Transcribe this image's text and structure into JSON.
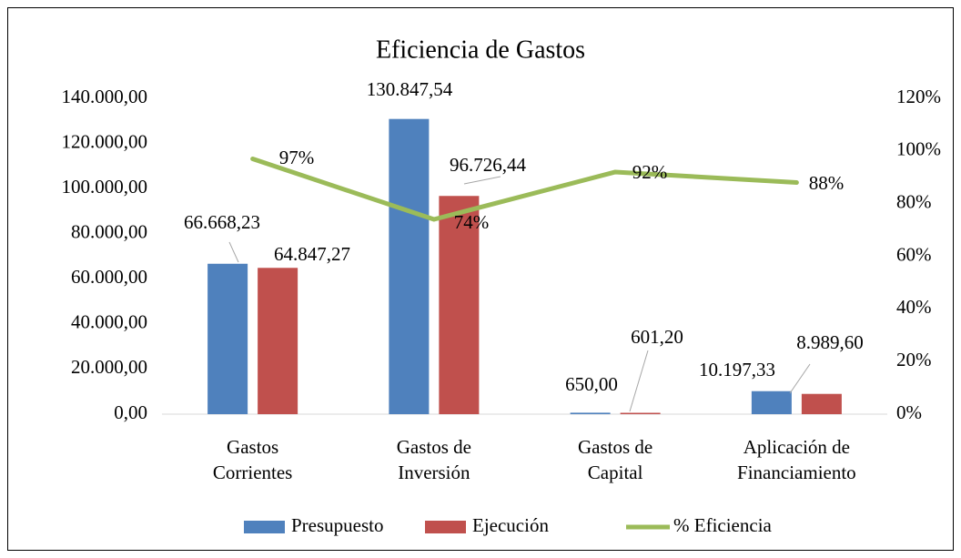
{
  "chart_data": {
    "type": "bar-line",
    "title": "Eficiencia de Gastos",
    "categories": [
      [
        "Gastos",
        "Corrientes"
      ],
      [
        "Gastos de",
        "Inversión"
      ],
      [
        "Gastos de",
        "Capital"
      ],
      [
        "Aplicación de",
        "Financiamiento"
      ]
    ],
    "series": [
      {
        "name": "Presupuesto",
        "type": "bar",
        "color": "#4f81bd",
        "values": [
          66668.23,
          130847.54,
          650,
          10197.33
        ],
        "value_labels": [
          "66.668,23",
          "130.847,54",
          "650,00",
          "10.197,33"
        ]
      },
      {
        "name": "Ejecución",
        "type": "bar",
        "color": "#c0504d",
        "values": [
          64847.27,
          96726.44,
          601.2,
          8989.6
        ],
        "value_labels": [
          "64.847,27",
          "96.726,44",
          "601,20",
          "8.989,60"
        ]
      },
      {
        "name": "% Eficiencia",
        "type": "line",
        "axis": "y2",
        "color": "#9bbb59",
        "values": [
          97,
          74,
          92,
          88
        ],
        "value_labels": [
          "97%",
          "74%",
          "92%",
          "88%"
        ]
      }
    ],
    "ylim": [
      0,
      140000
    ],
    "yticks": [
      {
        "value": 0,
        "label": "0,00"
      },
      {
        "value": 20000,
        "label": "20.000,00"
      },
      {
        "value": 40000,
        "label": "40.000,00"
      },
      {
        "value": 60000,
        "label": "60.000,00"
      },
      {
        "value": 80000,
        "label": "80.000,00"
      },
      {
        "value": 100000,
        "label": "100.000,00"
      },
      {
        "value": 120000,
        "label": "120.000,00"
      },
      {
        "value": 140000,
        "label": "140.000,00"
      }
    ],
    "y2lim": [
      0,
      120
    ],
    "y2ticks": [
      {
        "value": 0,
        "label": "0%"
      },
      {
        "value": 20,
        "label": "20%"
      },
      {
        "value": 40,
        "label": "40%"
      },
      {
        "value": 60,
        "label": "60%"
      },
      {
        "value": 80,
        "label": "80%"
      },
      {
        "value": 100,
        "label": "100%"
      },
      {
        "value": 120,
        "label": "120%"
      }
    ],
    "legend": "bottom"
  }
}
